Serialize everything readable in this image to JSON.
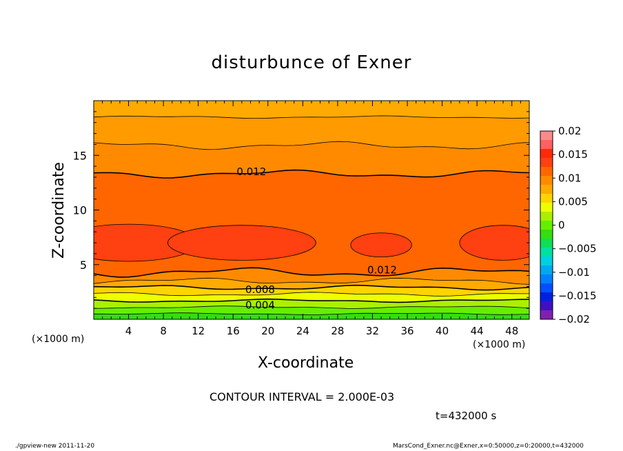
{
  "chart_data": {
    "type": "contour",
    "title": "disturbunce of Exner",
    "xlabel": "X-coordinate",
    "ylabel": "Z-coordinate",
    "x_unit": "(×1000 m)",
    "xlim": [
      0,
      50
    ],
    "ylim": [
      0,
      20
    ],
    "x_ticks": [
      4,
      8,
      12,
      16,
      20,
      24,
      28,
      32,
      36,
      40,
      44,
      48
    ],
    "y_ticks": [
      5,
      10,
      15
    ],
    "colorbar_ticks": [
      "0.02",
      "0.015",
      "0.01",
      "0.005",
      "0",
      "−0.005",
      "−0.01",
      "−0.015",
      "−0.02"
    ],
    "colorbar_range": [
      -0.02,
      0.02
    ],
    "contour_labels": [
      {
        "text": "0.012",
        "x": 17,
        "z": 13.5
      },
      {
        "text": "0.012",
        "x": 32,
        "z": 4.5
      },
      {
        "text": "0.008",
        "x": 18,
        "z": 2.7
      },
      {
        "text": "0.004",
        "x": 18,
        "z": 1.3
      }
    ],
    "contour_interval": "CONTOUR INTERVAL = 2.000E-03",
    "time": "t=432000 s"
  },
  "footer": {
    "left": "./gpview-new   2011-11-20",
    "right": "MarsCond_Exner.nc@Exner,x=0:50000,z=0:20000,t=432000"
  },
  "colors": {
    "levels": [
      "#33dd11",
      "#66ee00",
      "#aaf000",
      "#eeff00",
      "#ffd400",
      "#ffaa00",
      "#ff8a00",
      "#ff6600",
      "#ff4010",
      "#ff2a0a"
    ]
  }
}
